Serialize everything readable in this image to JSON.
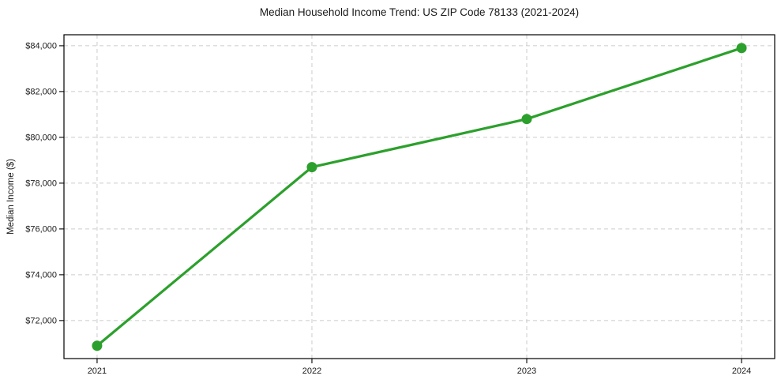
{
  "figure": {
    "background": "#ffffff"
  },
  "chart_data": {
    "type": "line",
    "title": "Median Household Income Trend: US ZIP Code 78133 (2021-2024)",
    "xlabel": "",
    "ylabel": "Median Income ($)",
    "categories": [
      "2021",
      "2022",
      "2023",
      "2024"
    ],
    "values": [
      70900,
      78700,
      80800,
      83900
    ],
    "line_color": "#2ca02c",
    "marker": "circle",
    "y_ticks": [
      {
        "value": 72000,
        "label": "$72,000"
      },
      {
        "value": 74000,
        "label": "$74,000"
      },
      {
        "value": 76000,
        "label": "$76,000"
      },
      {
        "value": 78000,
        "label": "$78,000"
      },
      {
        "value": 80000,
        "label": "$80,000"
      },
      {
        "value": 82000,
        "label": "$82,000"
      },
      {
        "value": 84000,
        "label": "$84,000"
      }
    ],
    "ylim": [
      70340,
      84480
    ],
    "grid": "dashed",
    "grid_color": "#cccccc",
    "axis_color": "#000000",
    "text_color": "#1a1a1a",
    "legend": "none"
  }
}
